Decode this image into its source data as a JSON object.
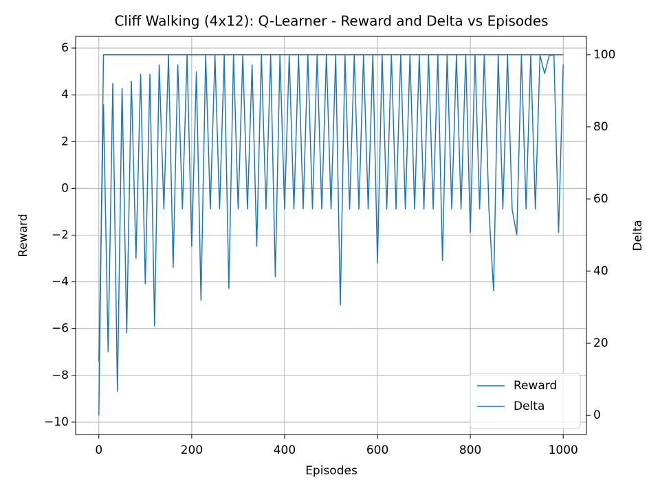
{
  "chart_data": {
    "type": "line",
    "title": "Cliff Walking (4x12): Q-Learner - Reward and Delta vs Episodes",
    "x_label": "Episodes",
    "y_label": "Reward",
    "y2_label": "Delta",
    "x": [
      0,
      10,
      20,
      30,
      40,
      50,
      60,
      70,
      80,
      90,
      100,
      110,
      120,
      130,
      140,
      150,
      160,
      170,
      180,
      190,
      200,
      210,
      220,
      230,
      240,
      250,
      260,
      270,
      280,
      290,
      300,
      310,
      320,
      330,
      340,
      350,
      360,
      370,
      380,
      390,
      400,
      410,
      420,
      430,
      440,
      450,
      460,
      470,
      480,
      490,
      500,
      510,
      520,
      530,
      540,
      550,
      560,
      570,
      580,
      590,
      600,
      610,
      620,
      630,
      640,
      650,
      660,
      670,
      680,
      690,
      700,
      710,
      720,
      730,
      740,
      750,
      760,
      770,
      780,
      790,
      800,
      810,
      820,
      830,
      840,
      850,
      860,
      870,
      880,
      890,
      900,
      910,
      920,
      930,
      940,
      950,
      960,
      970,
      980,
      990,
      1000
    ],
    "series": [
      {
        "name": "Reward",
        "color": "#1f77b4",
        "axis": "y",
        "values": [
          -7.4,
          3.6,
          -7.0,
          4.5,
          -8.7,
          4.3,
          -6.2,
          4.6,
          -3.0,
          4.9,
          -4.1,
          4.9,
          -5.9,
          5.3,
          -0.9,
          5.7,
          -3.4,
          5.3,
          -0.9,
          5.7,
          -2.5,
          5.0,
          -4.8,
          5.7,
          -0.9,
          5.7,
          -0.9,
          5.7,
          -4.3,
          5.7,
          -0.9,
          5.7,
          -0.9,
          5.3,
          -2.5,
          5.7,
          -0.9,
          5.7,
          -3.8,
          5.7,
          -0.9,
          5.7,
          -0.9,
          5.7,
          -0.9,
          5.7,
          -0.9,
          5.7,
          -0.9,
          5.7,
          -0.9,
          5.7,
          -5.0,
          5.7,
          -0.9,
          5.7,
          -0.9,
          5.7,
          -0.9,
          5.7,
          -3.2,
          5.7,
          -0.9,
          5.7,
          -0.9,
          5.7,
          -0.9,
          5.7,
          -0.9,
          5.7,
          -0.9,
          5.7,
          -0.9,
          5.7,
          -3.1,
          5.7,
          -0.9,
          5.7,
          -0.9,
          5.7,
          -1.9,
          5.7,
          -0.9,
          5.7,
          -0.9,
          -4.4,
          5.7,
          -0.9,
          5.7,
          -0.9,
          -2.0,
          5.7,
          -0.9,
          5.7,
          -0.9,
          5.7,
          4.9,
          5.7,
          5.7,
          -1.9,
          5.3
        ]
      },
      {
        "name": "Delta",
        "color": "#1f77b4",
        "axis": "y2",
        "values": [
          0,
          100,
          100,
          100,
          100,
          100,
          100,
          100,
          100,
          100,
          100,
          100,
          100,
          100,
          100,
          100,
          100,
          100,
          100,
          100,
          100,
          100,
          100,
          100,
          100,
          100,
          100,
          100,
          100,
          100,
          100,
          100,
          100,
          100,
          100,
          100,
          100,
          100,
          100,
          100,
          100,
          100,
          100,
          100,
          100,
          100,
          100,
          100,
          100,
          100,
          100,
          100,
          100,
          100,
          100,
          100,
          100,
          100,
          100,
          100,
          100,
          100,
          100,
          100,
          100,
          100,
          100,
          100,
          100,
          100,
          100,
          100,
          100,
          100,
          100,
          100,
          100,
          100,
          100,
          100,
          100,
          100,
          100,
          100,
          100,
          100,
          100,
          100,
          100,
          100,
          100,
          100,
          100,
          100,
          100,
          100,
          100,
          100,
          100,
          100,
          100
        ]
      }
    ],
    "xlim": [
      -50,
      1050
    ],
    "xticks": [
      0,
      200,
      400,
      600,
      800,
      1000
    ],
    "ylim": [
      -10.53,
      6.5
    ],
    "yticks": [
      {
        "value": -10,
        "label": "−10"
      },
      {
        "value": -8,
        "label": "−8"
      },
      {
        "value": -6,
        "label": "−6"
      },
      {
        "value": -4,
        "label": "−4"
      },
      {
        "value": -2,
        "label": "−2"
      },
      0,
      2,
      4,
      6
    ],
    "y2lim": [
      -5.3,
      105.1
    ],
    "y2ticks": [
      0,
      20,
      40,
      60,
      80,
      100
    ],
    "grid": true,
    "legend": "lower right"
  }
}
